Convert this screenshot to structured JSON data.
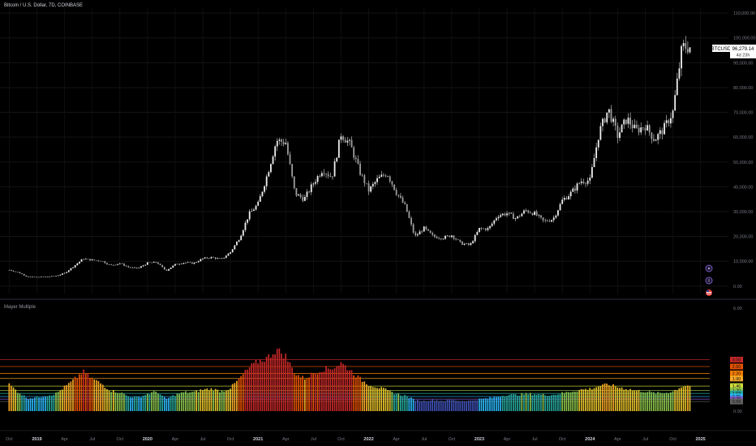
{
  "header": {
    "title": "Bitcoin / U.S. Dollar, 7D, COINBASE"
  },
  "indicator": {
    "title": "Mayer Multiple"
  },
  "price_label": {
    "symbol": "BTCUSD",
    "price": "96,279.14",
    "countdown": "4d 23h"
  },
  "colors": {
    "background": "#000000",
    "candle": "#d9d9d9",
    "grid": "#1e1e1e",
    "label_bg": "#ffffff"
  },
  "chart_data": [
    {
      "type": "line",
      "title": "Bitcoin / U.S. Dollar, 7D, COINBASE",
      "series": [
        {
          "name": "BTCUSD",
          "points": [
            [
              "2018-10",
              6500
            ],
            [
              "2018-11",
              5500
            ],
            [
              "2018-12",
              3700
            ],
            [
              "2019-01",
              3600
            ],
            [
              "2019-02",
              3800
            ],
            [
              "2019-03",
              4000
            ],
            [
              "2019-04",
              5200
            ],
            [
              "2019-05",
              8000
            ],
            [
              "2019-06",
              11000
            ],
            [
              "2019-07",
              10500
            ],
            [
              "2019-08",
              10200
            ],
            [
              "2019-09",
              8300
            ],
            [
              "2019-10",
              9200
            ],
            [
              "2019-11",
              7500
            ],
            [
              "2019-12",
              7200
            ],
            [
              "2020-01",
              9300
            ],
            [
              "2020-02",
              9600
            ],
            [
              "2020-03",
              6200
            ],
            [
              "2020-04",
              8700
            ],
            [
              "2020-05",
              9500
            ],
            [
              "2020-06",
              9200
            ],
            [
              "2020-07",
              11100
            ],
            [
              "2020-08",
              11600
            ],
            [
              "2020-09",
              10700
            ],
            [
              "2020-10",
              13700
            ],
            [
              "2020-11",
              19500
            ],
            [
              "2020-12",
              28900
            ],
            [
              "2021-01",
              33100
            ],
            [
              "2021-02",
              45000
            ],
            [
              "2021-03",
              58700
            ],
            [
              "2021-04",
              57800
            ],
            [
              "2021-05",
              37300
            ],
            [
              "2021-06",
              35000
            ],
            [
              "2021-07",
              41500
            ],
            [
              "2021-08",
              47100
            ],
            [
              "2021-09",
              43800
            ],
            [
              "2021-10",
              61300
            ],
            [
              "2021-11",
              57000
            ],
            [
              "2021-12",
              46300
            ],
            [
              "2022-01",
              38500
            ],
            [
              "2022-02",
              43200
            ],
            [
              "2022-03",
              45500
            ],
            [
              "2022-04",
              37700
            ],
            [
              "2022-05",
              31800
            ],
            [
              "2022-06",
              19900
            ],
            [
              "2022-07",
              23300
            ],
            [
              "2022-08",
              20000
            ],
            [
              "2022-09",
              19400
            ],
            [
              "2022-10",
              20500
            ],
            [
              "2022-11",
              17200
            ],
            [
              "2022-12",
              16500
            ],
            [
              "2023-01",
              23100
            ],
            [
              "2023-02",
              23100
            ],
            [
              "2023-03",
              28500
            ],
            [
              "2023-04",
              29300
            ],
            [
              "2023-05",
              27200
            ],
            [
              "2023-06",
              30500
            ],
            [
              "2023-07",
              29200
            ],
            [
              "2023-08",
              26000
            ],
            [
              "2023-09",
              27000
            ],
            [
              "2023-10",
              34500
            ],
            [
              "2023-11",
              37700
            ],
            [
              "2023-12",
              42300
            ],
            [
              "2024-01",
              42600
            ],
            [
              "2024-02",
              62000
            ],
            [
              "2024-03",
              71300
            ],
            [
              "2024-04",
              60600
            ],
            [
              "2024-05",
              67500
            ],
            [
              "2024-06",
              62700
            ],
            [
              "2024-07",
              64600
            ],
            [
              "2024-08",
              59000
            ],
            [
              "2024-09",
              63300
            ],
            [
              "2024-10",
              70200
            ],
            [
              "2024-11",
              96400
            ],
            [
              "2024-12",
              96279
            ]
          ]
        }
      ],
      "yticks": [
        "0.00",
        "10,000.00",
        "20,000.00",
        "30,000.00",
        "40,000.00",
        "50,000.00",
        "60,000.00",
        "70,000.00",
        "80,000.00",
        "90,000.00",
        "100,000.00",
        "110,000.00"
      ],
      "ylim": [
        -3000,
        112000
      ]
    },
    {
      "type": "bar",
      "title": "Mayer Multiple",
      "series": [
        {
          "points": [
            [
              "2018-10",
              1.55
            ],
            [
              "2018-11",
              1.1
            ],
            [
              "2018-12",
              0.75
            ],
            [
              "2019-01",
              0.8
            ],
            [
              "2019-02",
              0.9
            ],
            [
              "2019-03",
              1.0
            ],
            [
              "2019-04",
              1.4
            ],
            [
              "2019-05",
              1.8
            ],
            [
              "2019-06",
              2.3
            ],
            [
              "2019-07",
              1.9
            ],
            [
              "2019-08",
              1.6
            ],
            [
              "2019-09",
              1.2
            ],
            [
              "2019-10",
              1.1
            ],
            [
              "2019-11",
              0.85
            ],
            [
              "2019-12",
              0.8
            ],
            [
              "2020-01",
              1.0
            ],
            [
              "2020-02",
              1.15
            ],
            [
              "2020-03",
              0.7
            ],
            [
              "2020-04",
              0.95
            ],
            [
              "2020-05",
              1.1
            ],
            [
              "2020-06",
              1.1
            ],
            [
              "2020-07",
              1.25
            ],
            [
              "2020-08",
              1.3
            ],
            [
              "2020-09",
              1.15
            ],
            [
              "2020-10",
              1.35
            ],
            [
              "2020-11",
              1.9
            ],
            [
              "2020-12",
              2.5
            ],
            [
              "2021-01",
              2.9
            ],
            [
              "2021-02",
              3.1
            ],
            [
              "2021-03",
              3.6
            ],
            [
              "2021-04",
              3.2
            ],
            [
              "2021-05",
              2.2
            ],
            [
              "2021-06",
              1.9
            ],
            [
              "2021-07",
              2.2
            ],
            [
              "2021-08",
              2.45
            ],
            [
              "2021-09",
              2.5
            ],
            [
              "2021-10",
              2.8
            ],
            [
              "2021-11",
              2.4
            ],
            [
              "2021-12",
              1.9
            ],
            [
              "2022-01",
              1.55
            ],
            [
              "2022-02",
              1.4
            ],
            [
              "2022-03",
              1.2
            ],
            [
              "2022-04",
              1.0
            ],
            [
              "2022-05",
              0.9
            ],
            [
              "2022-06",
              0.65
            ],
            [
              "2022-07",
              0.6
            ],
            [
              "2022-08",
              0.65
            ],
            [
              "2022-09",
              0.6
            ],
            [
              "2022-10",
              0.65
            ],
            [
              "2022-11",
              0.6
            ],
            [
              "2022-12",
              0.6
            ],
            [
              "2023-01",
              0.7
            ],
            [
              "2023-02",
              0.75
            ],
            [
              "2023-03",
              0.85
            ],
            [
              "2023-04",
              0.95
            ],
            [
              "2023-05",
              0.95
            ],
            [
              "2023-06",
              1.0
            ],
            [
              "2023-07",
              1.0
            ],
            [
              "2023-08",
              0.95
            ],
            [
              "2023-09",
              0.95
            ],
            [
              "2023-10",
              1.05
            ],
            [
              "2023-11",
              1.15
            ],
            [
              "2023-12",
              1.25
            ],
            [
              "2024-01",
              1.3
            ],
            [
              "2024-02",
              1.45
            ],
            [
              "2024-03",
              1.55
            ],
            [
              "2024-04",
              1.4
            ],
            [
              "2024-05",
              1.3
            ],
            [
              "2024-06",
              1.2
            ],
            [
              "2024-07",
              1.15
            ],
            [
              "2024-08",
              1.05
            ],
            [
              "2024-09",
              1.05
            ],
            [
              "2024-10",
              1.15
            ],
            [
              "2024-11",
              1.45
            ],
            [
              "2024-12",
              1.5
            ]
          ]
        }
      ],
      "yticks": [
        "0.00",
        "6.00"
      ],
      "levels": [
        {
          "label": "3.00",
          "value": 3.0,
          "color": "#c62828"
        },
        {
          "label": "2.60",
          "value": 2.6,
          "color": "#e65100"
        },
        {
          "label": "2.20",
          "value": 2.2,
          "color": "#f57c00"
        },
        {
          "label": "1.90",
          "value": 1.9,
          "color": "#f9a825"
        },
        {
          "label": "1.46",
          "value": 1.46,
          "color": "#cddc39"
        },
        {
          "label": "1.20",
          "value": 1.2,
          "color": "#8bc34a"
        },
        {
          "label": "1.03",
          "value": 1.03,
          "color": "#26a69a"
        },
        {
          "label": "0.85",
          "value": 0.85,
          "color": "#29b6f6"
        },
        {
          "label": "0.70",
          "value": 0.7,
          "color": "#7e57c2"
        },
        {
          "label": "0.56",
          "value": 0.56,
          "color": "#616161"
        }
      ],
      "ylim": [
        0,
        6
      ]
    }
  ],
  "x_axis": {
    "ticks": [
      {
        "label": "Oct",
        "date": "2018-10",
        "bold": false
      },
      {
        "label": "2019",
        "date": "2019-01",
        "bold": true
      },
      {
        "label": "Apr",
        "date": "2019-04",
        "bold": false
      },
      {
        "label": "Jul",
        "date": "2019-07",
        "bold": false
      },
      {
        "label": "Oct",
        "date": "2019-10",
        "bold": false
      },
      {
        "label": "2020",
        "date": "2020-01",
        "bold": true
      },
      {
        "label": "Apr",
        "date": "2020-04",
        "bold": false
      },
      {
        "label": "Jul",
        "date": "2020-07",
        "bold": false
      },
      {
        "label": "Oct",
        "date": "2020-10",
        "bold": false
      },
      {
        "label": "2021",
        "date": "2021-01",
        "bold": true
      },
      {
        "label": "Apr",
        "date": "2021-04",
        "bold": false
      },
      {
        "label": "Jul",
        "date": "2021-07",
        "bold": false
      },
      {
        "label": "Oct",
        "date": "2021-10",
        "bold": false
      },
      {
        "label": "2022",
        "date": "2022-01",
        "bold": true
      },
      {
        "label": "Apr",
        "date": "2022-04",
        "bold": false
      },
      {
        "label": "Jul",
        "date": "2022-07",
        "bold": false
      },
      {
        "label": "Oct",
        "date": "2022-10",
        "bold": false
      },
      {
        "label": "2023",
        "date": "2023-01",
        "bold": true
      },
      {
        "label": "Apr",
        "date": "2023-04",
        "bold": false
      },
      {
        "label": "Jul",
        "date": "2023-07",
        "bold": false
      },
      {
        "label": "Oct",
        "date": "2023-10",
        "bold": false
      },
      {
        "label": "2024",
        "date": "2024-01",
        "bold": true
      },
      {
        "label": "Apr",
        "date": "2024-04",
        "bold": false
      },
      {
        "label": "Jul",
        "date": "2024-07",
        "bold": false
      },
      {
        "label": "Oct",
        "date": "2024-10",
        "bold": false
      },
      {
        "label": "2025",
        "date": "2025-01",
        "bold": true
      }
    ],
    "range": [
      "2018-09",
      "2025-02"
    ]
  },
  "icons": [
    "calendar-event-icon",
    "economic-event-icon",
    "us-flag-icon"
  ]
}
